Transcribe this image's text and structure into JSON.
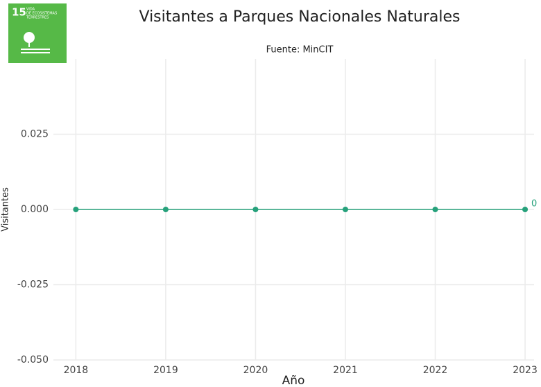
{
  "logo": {
    "number": "15",
    "lines": [
      "VIDA",
      "DE ECOSISTEMAS",
      "TERRESTRES"
    ]
  },
  "chart_data": {
    "type": "line",
    "title": "Visitantes a Parques Nacionales Naturales",
    "subtitle": "Fuente: MinCIT",
    "x_label": "Año",
    "y_label": "Visitantes",
    "x": [
      2018,
      2019,
      2020,
      2021,
      2022,
      2023
    ],
    "series": [
      {
        "name": "Visitantes",
        "color": "#26a17b",
        "values": [
          0,
          0,
          0,
          0,
          0,
          0
        ]
      }
    ],
    "xlim": [
      2017.75,
      2023.1
    ],
    "xticks": [
      2018,
      2019,
      2020,
      2021,
      2022,
      2023
    ],
    "ylim": [
      -0.05,
      0.05
    ],
    "yticks": [
      {
        "value": -0.05,
        "label": "-0.050"
      },
      {
        "value": -0.025,
        "label": "-0.025"
      },
      {
        "value": 0,
        "label": "0.000"
      },
      {
        "value": 0.025,
        "label": "0.025"
      }
    ],
    "grid": true
  }
}
